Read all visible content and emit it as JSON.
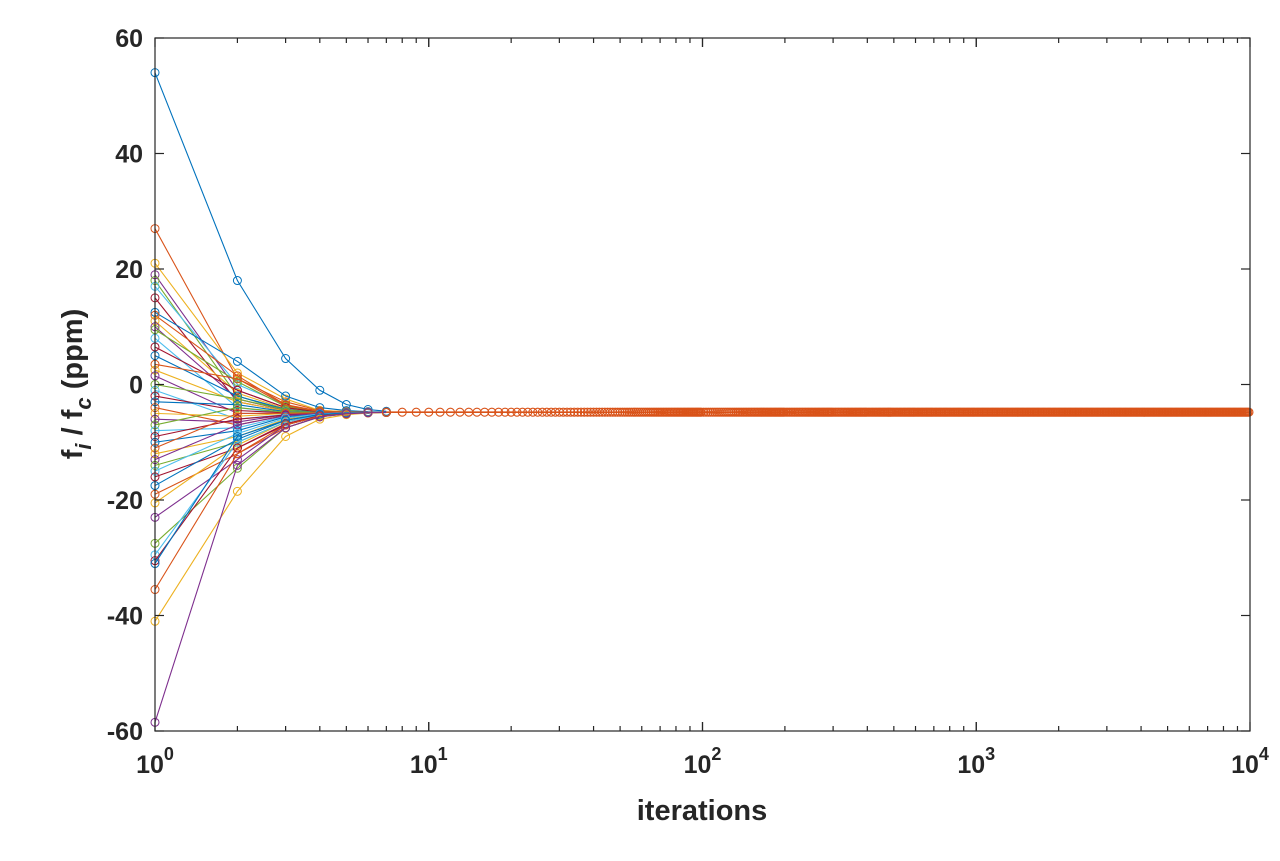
{
  "chart_data": {
    "type": "line",
    "x_scale": "log",
    "xlim": [
      1,
      10000
    ],
    "ylim": [
      -60,
      60
    ],
    "xlabel": "iterations",
    "ylabel_parts": [
      "f",
      "i",
      " / f",
      "c",
      " (ppm)"
    ],
    "x_ticks": [
      {
        "base": "10",
        "exp": "0"
      },
      {
        "base": "10",
        "exp": "1"
      },
      {
        "base": "10",
        "exp": "2"
      },
      {
        "base": "10",
        "exp": "3"
      },
      {
        "base": "10",
        "exp": "4"
      }
    ],
    "x_tick_values": [
      1,
      10,
      100,
      1000,
      10000
    ],
    "y_ticks": [
      "60",
      "40",
      "20",
      "0",
      "-20",
      "-40",
      "-60"
    ],
    "y_tick_values": [
      60,
      40,
      20,
      0,
      -20,
      -40,
      -60
    ],
    "grid": false,
    "marker": "circle",
    "converged_value": -4.8,
    "colors": [
      "#0072BD",
      "#D95319",
      "#EDB120",
      "#7E2F8E",
      "#77AC30",
      "#4DBEEE",
      "#A2142F"
    ],
    "series_iter_1_4": [
      [
        54.0,
        18.0,
        4.5,
        -1.0
      ],
      [
        27.0,
        1.0,
        -3.0,
        -4.5
      ],
      [
        21.0,
        2.0,
        -2.5,
        -4.5
      ],
      [
        19.0,
        -1.0,
        -4.0,
        -5.0
      ],
      [
        18.0,
        -2.0,
        -4.5,
        -5.0
      ],
      [
        17.0,
        0.0,
        -3.5,
        -4.8
      ],
      [
        15.0,
        -3.0,
        -4.6,
        -5.0
      ],
      [
        12.5,
        4.0,
        -2.0,
        -4.0
      ],
      [
        12.0,
        1.5,
        -3.5,
        -4.6
      ],
      [
        11.0,
        -1.5,
        -4.2,
        -4.9
      ],
      [
        10.0,
        -2.5,
        -4.5,
        -5.0
      ],
      [
        9.5,
        0.5,
        -3.8,
        -4.7
      ],
      [
        8.0,
        -4.0,
        -5.0,
        -5.0
      ],
      [
        6.5,
        -1.0,
        -4.0,
        -4.8
      ],
      [
        5.0,
        -2.0,
        -4.3,
        -4.9
      ],
      [
        3.5,
        1.0,
        -3.6,
        -4.7
      ],
      [
        2.5,
        -3.0,
        -4.6,
        -4.9
      ],
      [
        1.5,
        -5.0,
        -5.0,
        -5.0
      ],
      [
        0.0,
        -2.5,
        -4.4,
        -4.9
      ],
      [
        -1.0,
        -6.0,
        -5.2,
        -5.0
      ],
      [
        -2.0,
        -4.5,
        -4.9,
        -4.9
      ],
      [
        -3.0,
        -3.5,
        -4.7,
        -4.9
      ],
      [
        -4.0,
        -7.0,
        -5.3,
        -5.0
      ],
      [
        -5.0,
        -5.5,
        -5.0,
        -4.9
      ],
      [
        -6.0,
        -6.5,
        -5.2,
        -5.0
      ],
      [
        -7.0,
        -4.0,
        -4.8,
        -4.9
      ],
      [
        -8.0,
        -7.5,
        -5.5,
        -5.1
      ],
      [
        -9.0,
        -6.0,
        -5.3,
        -5.0
      ],
      [
        -10.0,
        -8.0,
        -5.6,
        -5.1
      ],
      [
        -11.0,
        -5.0,
        -5.0,
        -4.9
      ],
      [
        -12.0,
        -9.0,
        -6.0,
        -5.2
      ],
      [
        -13.0,
        -7.0,
        -5.4,
        -5.0
      ],
      [
        -14.0,
        -10.0,
        -6.5,
        -5.3
      ],
      [
        -15.0,
        -8.5,
        -5.8,
        -5.1
      ],
      [
        -16.0,
        -11.0,
        -7.0,
        -5.5
      ],
      [
        -17.5,
        -9.5,
        -6.2,
        -5.2
      ],
      [
        -19.0,
        -12.0,
        -7.5,
        -5.6
      ],
      [
        -20.5,
        -10.5,
        -6.5,
        -5.3
      ],
      [
        -23.0,
        -13.0,
        -7.0,
        -5.5
      ],
      [
        -27.5,
        -14.5,
        -7.5,
        -5.6
      ],
      [
        -29.5,
        -10.0,
        -6.5,
        -5.3
      ],
      [
        -30.5,
        -11.0,
        -6.8,
        -5.4
      ],
      [
        -31.0,
        -9.0,
        -6.2,
        -5.2
      ],
      [
        -35.5,
        -12.0,
        -7.0,
        -5.5
      ],
      [
        -41.0,
        -18.5,
        -9.0,
        -6.0
      ],
      [
        -58.5,
        -14.0,
        -7.5,
        -5.6
      ]
    ]
  }
}
